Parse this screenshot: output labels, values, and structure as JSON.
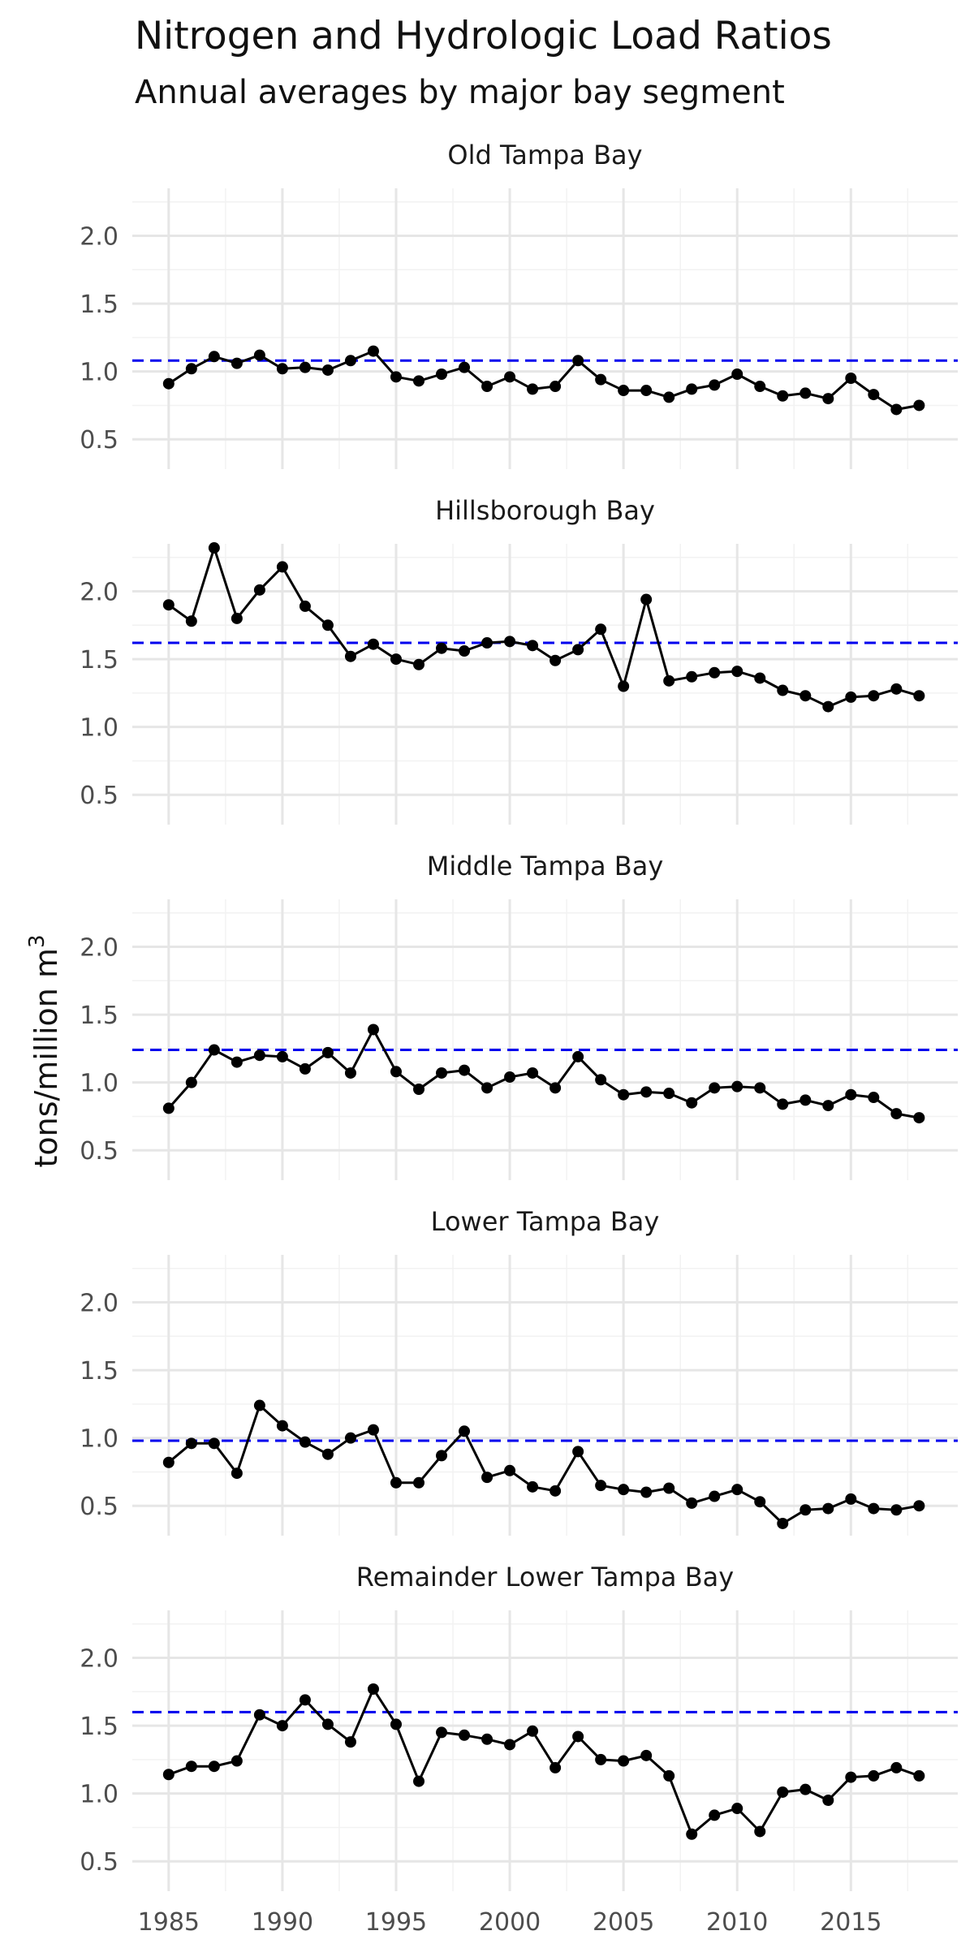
{
  "chart_data": {
    "type": "line",
    "title": "Nitrogen and Hydrologic Load Ratios",
    "subtitle": "Annual averages by major bay segment",
    "ylabel": "tons/million m",
    "ylabel_superscript": "3",
    "xlabel": "",
    "x": [
      1985,
      1986,
      1987,
      1988,
      1989,
      1990,
      1991,
      1992,
      1993,
      1994,
      1995,
      1996,
      1997,
      1998,
      1999,
      2000,
      2001,
      2002,
      2003,
      2004,
      2005,
      2006,
      2007,
      2008,
      2009,
      2010,
      2011,
      2012,
      2013,
      2014,
      2015,
      2016,
      2017,
      2018
    ],
    "xlim": [
      1983.4,
      2019.7
    ],
    "ylim": [
      0.28,
      2.35
    ],
    "x_ticks": [
      1985,
      1990,
      1995,
      2000,
      2005,
      2010,
      2015
    ],
    "x_tick_labels": [
      "1985",
      "1990",
      "1995",
      "2000",
      "2005",
      "2010",
      "2015"
    ],
    "y_ticks": [
      0.5,
      1.0,
      1.5,
      2.0
    ],
    "y_tick_labels": [
      "0.5",
      "1.0",
      "1.5",
      "2.0"
    ],
    "grid": true,
    "series_color": "#000000",
    "target_line_color": "#0000ee",
    "facets": [
      {
        "title": "Old Tampa Bay",
        "target": 1.08,
        "values": [
          0.91,
          1.02,
          1.11,
          1.06,
          1.12,
          1.02,
          1.03,
          1.01,
          1.08,
          1.15,
          0.96,
          0.93,
          0.98,
          1.03,
          0.89,
          0.96,
          0.87,
          0.89,
          1.08,
          0.94,
          0.86,
          0.86,
          0.81,
          0.87,
          0.9,
          0.98,
          0.89,
          0.82,
          0.84,
          0.8,
          0.95,
          0.83,
          0.72,
          0.75
        ]
      },
      {
        "title": "Hillsborough Bay",
        "target": 1.62,
        "values": [
          1.9,
          1.78,
          2.32,
          1.8,
          2.01,
          2.18,
          1.89,
          1.75,
          1.52,
          1.61,
          1.5,
          1.46,
          1.58,
          1.56,
          1.62,
          1.63,
          1.6,
          1.49,
          1.57,
          1.72,
          1.3,
          1.94,
          1.34,
          1.37,
          1.4,
          1.41,
          1.36,
          1.27,
          1.23,
          1.15,
          1.22,
          1.23,
          1.28,
          1.23
        ]
      },
      {
        "title": "Middle Tampa Bay",
        "target": 1.24,
        "values": [
          0.81,
          1.0,
          1.24,
          1.15,
          1.2,
          1.19,
          1.1,
          1.22,
          1.07,
          1.39,
          1.08,
          0.95,
          1.07,
          1.09,
          0.96,
          1.04,
          1.07,
          0.96,
          1.19,
          1.02,
          0.91,
          0.93,
          0.92,
          0.85,
          0.96,
          0.97,
          0.96,
          0.84,
          0.87,
          0.83,
          0.91,
          0.89,
          0.77,
          0.74
        ]
      },
      {
        "title": "Lower Tampa Bay",
        "target": 0.98,
        "values": [
          0.82,
          0.96,
          0.96,
          0.74,
          1.24,
          1.09,
          0.97,
          0.88,
          1.0,
          1.06,
          0.67,
          0.67,
          0.87,
          1.05,
          0.71,
          0.76,
          0.64,
          0.61,
          0.9,
          0.65,
          0.62,
          0.6,
          0.63,
          0.52,
          0.57,
          0.62,
          0.53,
          0.37,
          0.47,
          0.48,
          0.55,
          0.48,
          0.47,
          0.5
        ]
      },
      {
        "title": "Remainder Lower Tampa Bay",
        "target": 1.6,
        "values": [
          1.14,
          1.2,
          1.2,
          1.24,
          1.58,
          1.5,
          1.69,
          1.51,
          1.38,
          1.77,
          1.51,
          1.09,
          1.45,
          1.43,
          1.4,
          1.36,
          1.46,
          1.19,
          1.42,
          1.25,
          1.24,
          1.28,
          1.13,
          0.7,
          0.84,
          0.89,
          0.72,
          1.01,
          1.03,
          0.95,
          1.12,
          1.13,
          1.19,
          1.13
        ]
      }
    ]
  }
}
